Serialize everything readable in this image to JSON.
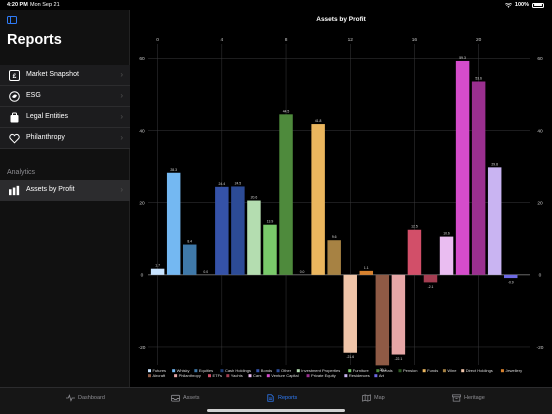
{
  "status_bar": {
    "time": "4:20 PM",
    "date": "Mon Sep 21",
    "battery": "100%"
  },
  "sidebar": {
    "title": "Reports",
    "items": [
      {
        "label": "Market Snapshot",
        "icon": "market-snapshot-icon"
      },
      {
        "label": "ESG",
        "icon": "esg-icon"
      },
      {
        "label": "Legal Entities",
        "icon": "legal-entities-icon"
      },
      {
        "label": "Philanthropy",
        "icon": "heart-icon"
      }
    ],
    "section_header": "Analytics",
    "analytics_items": [
      {
        "label": "Assets by Profit",
        "icon": "bar-chart-icon",
        "selected": true
      }
    ]
  },
  "tabs": [
    {
      "label": "Dashboard",
      "icon": "pulse-icon"
    },
    {
      "label": "Assets",
      "icon": "tray-icon"
    },
    {
      "label": "Reports",
      "icon": "document-icon",
      "active": true
    },
    {
      "label": "Map",
      "icon": "map-icon"
    },
    {
      "label": "Heritage",
      "icon": "archive-icon"
    }
  ],
  "colors": {
    "accent": "#2f7bf6",
    "background": "#000000",
    "sidebar": "#111111"
  },
  "chart_data": {
    "type": "bar",
    "title": "Assets by Profit",
    "x_top_ticks": [
      "0",
      "4",
      "8",
      "12",
      "16",
      "20"
    ],
    "x_tick_values": [
      0,
      4,
      8,
      12,
      16,
      20
    ],
    "y_ticks": [
      -20,
      0,
      20,
      40,
      60
    ],
    "ylim": [
      -25,
      64
    ],
    "xlim": [
      -0.6,
      23.2
    ],
    "grid": true,
    "legend_position": "bottom",
    "bars": [
      {
        "name": "Futures",
        "x": 0,
        "value": 1.7,
        "label": "1.7",
        "color": "#c7e3ff"
      },
      {
        "name": "Whisky",
        "x": 1,
        "value": 28.3,
        "label": "28.3",
        "color": "#74b8f2"
      },
      {
        "name": "Equities",
        "x": 2,
        "value": 8.4,
        "label": "8.4",
        "color": "#3f79a9"
      },
      {
        "name": "Cash Holdings",
        "x": 3,
        "value": 0.0,
        "label": "0.0",
        "color": "#1f3f7a"
      },
      {
        "name": "Bonds",
        "x": 4,
        "value": 24.4,
        "label": "24.4",
        "color": "#3552a8"
      },
      {
        "name": "Other",
        "x": 5,
        "value": 24.5,
        "label": "24.5",
        "color": "#2c4b96"
      },
      {
        "name": "Investment Properties",
        "x": 6,
        "value": 20.6,
        "label": "20.6",
        "color": "#b4ddb0"
      },
      {
        "name": "Furniture",
        "x": 7,
        "value": 13.9,
        "label": "13.9",
        "color": "#79c96a"
      },
      {
        "name": "Metals",
        "x": 8,
        "value": 44.5,
        "label": "44.5",
        "color": "#4e8a3c"
      },
      {
        "name": "Pension",
        "x": 9,
        "value": 0.0,
        "label": "0.0",
        "color": "#2e5a22"
      },
      {
        "name": "Funds",
        "x": 10,
        "value": 41.8,
        "label": "41.8",
        "color": "#ebb65e"
      },
      {
        "name": "Wine",
        "x": 11,
        "value": 9.6,
        "label": "9.6",
        "color": "#a78243"
      },
      {
        "name": "Direct Holdings",
        "x": 12,
        "value": -21.6,
        "label": "-21.6",
        "color": "#efc4a8"
      },
      {
        "name": "Jewellery",
        "x": 13,
        "value": 1.1,
        "label": "1.1",
        "color": "#d8822e"
      },
      {
        "name": "Aircraft",
        "x": 14,
        "value": -25.1,
        "label": "-25.1",
        "color": "#8f5a45"
      },
      {
        "name": "Philanthropy",
        "x": 15,
        "value": -22.1,
        "label": "-22.1",
        "color": "#e6a6a6"
      },
      {
        "name": "ETFs",
        "x": 16,
        "value": 12.5,
        "label": "12.5",
        "color": "#d24f69"
      },
      {
        "name": "Yachts",
        "x": 17,
        "value": -2.1,
        "label": "-2.1",
        "color": "#a53e52"
      },
      {
        "name": "Cars",
        "x": 18,
        "value": 10.6,
        "label": "10.6",
        "color": "#eabdf1"
      },
      {
        "name": "Venture Capital",
        "x": 19,
        "value": 59.3,
        "label": "59.3",
        "color": "#d54ccb"
      },
      {
        "name": "Private Equity",
        "x": 20,
        "value": 53.6,
        "label": "53.6",
        "color": "#9a2f8f"
      },
      {
        "name": "Residences",
        "x": 21,
        "value": 29.8,
        "label": "29.8",
        "color": "#c9b4f2"
      },
      {
        "name": "Art",
        "x": 22,
        "value": -0.9,
        "label": "-0.9",
        "color": "#6d69e3"
      }
    ],
    "legend_rows": [
      [
        "Futures",
        "Whisky",
        "Equities",
        "Cash Holdings",
        "Bonds",
        "Other",
        "Investment Properties",
        "Furniture",
        "Metals",
        "Pension",
        "Funds",
        "Wine",
        "Direct Holdings",
        "Jewellery"
      ],
      [
        "Aircraft",
        "Philanthropy",
        "ETFs",
        "Yachts",
        "Cars",
        "Venture Capital",
        "Private Equity",
        "Residences",
        "Art"
      ]
    ]
  }
}
